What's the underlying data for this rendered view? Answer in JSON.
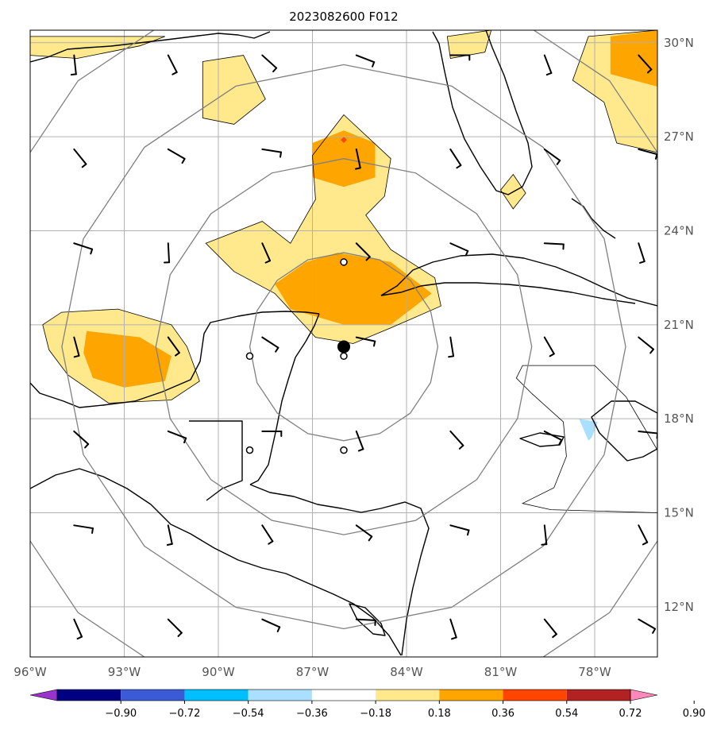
{
  "title": "2023082600 F012",
  "axes": {
    "lon_labels": [
      "96°W",
      "93°W",
      "90°W",
      "87°W",
      "84°W",
      "81°W",
      "78°W"
    ],
    "lat_labels": [
      "30°N",
      "27°N",
      "24°N",
      "21°N",
      "18°N",
      "15°N",
      "12°N"
    ],
    "lon_range": [
      -96,
      -76
    ],
    "lat_range": [
      10.4,
      30.4
    ],
    "grid": true
  },
  "colorbar": {
    "levels": [
      "−0.90",
      "−0.72",
      "−0.54",
      "−0.36",
      "−0.18",
      "0.18",
      "0.36",
      "0.54",
      "0.72",
      "0.90"
    ],
    "colors": [
      "#9933cc",
      "#000080",
      "#3b5bd6",
      "#00bfff",
      "#aadfff",
      "#ffffff",
      "#ffe98c",
      "#ffa500",
      "#ff4500",
      "#b22222",
      "#ff88bb"
    ],
    "extend": "both"
  },
  "colors": {
    "coast": "#000000",
    "grid": "#b0b0b0",
    "range_rings": "#808080",
    "contour_line": "#000000"
  },
  "storm_center": {
    "lon": -86.0,
    "lat": 20.3
  },
  "range_ring_radii_deg": [
    3,
    6,
    9,
    12
  ],
  "chart_data": {
    "type": "heatmap",
    "field_levels": [
      -0.9,
      -0.72,
      -0.54,
      -0.36,
      -0.18,
      0.18,
      0.36,
      0.54,
      0.72,
      0.9
    ],
    "positive_regions": [
      {
        "level": 0.18,
        "coords": [
          [
            -96,
            29.6
          ],
          [
            -94.5,
            29.5
          ],
          [
            -92.5,
            29.9
          ],
          [
            -91.7,
            30.2
          ],
          [
            -96,
            30.2
          ]
        ]
      },
      {
        "level": 0.18,
        "coords": [
          [
            -90.5,
            29.4
          ],
          [
            -89.2,
            29.6
          ],
          [
            -88.5,
            28.2
          ],
          [
            -89.5,
            27.4
          ],
          [
            -90.5,
            27.6
          ]
        ]
      },
      {
        "level": 0.18,
        "coords": [
          [
            -86.0,
            27.7
          ],
          [
            -84.5,
            26.3
          ],
          [
            -84.7,
            25.1
          ],
          [
            -85.3,
            24.5
          ],
          [
            -84.5,
            23.4
          ],
          [
            -83.1,
            22.5
          ],
          [
            -82.9,
            21.6
          ],
          [
            -84.5,
            20.9
          ],
          [
            -85.7,
            20.4
          ],
          [
            -86.9,
            20.6
          ],
          [
            -88.2,
            22.0
          ],
          [
            -89.5,
            22.7
          ],
          [
            -90.4,
            23.6
          ],
          [
            -88.6,
            24.3
          ],
          [
            -87.7,
            23.6
          ],
          [
            -86.9,
            25.0
          ],
          [
            -87.0,
            26.4
          ]
        ]
      },
      {
        "level": 0.18,
        "coords": [
          [
            -95.6,
            21.0
          ],
          [
            -95.0,
            21.4
          ],
          [
            -93.2,
            21.5
          ],
          [
            -91.5,
            21.0
          ],
          [
            -91.0,
            20.3
          ],
          [
            -90.6,
            19.2
          ],
          [
            -91.5,
            18.6
          ],
          [
            -93.5,
            18.5
          ],
          [
            -94.8,
            19.4
          ],
          [
            -95.4,
            20.2
          ]
        ]
      },
      {
        "level": 0.18,
        "coords": [
          [
            -82.7,
            30.2
          ],
          [
            -81.3,
            30.4
          ],
          [
            -81.5,
            29.7
          ],
          [
            -82.6,
            29.5
          ]
        ]
      },
      {
        "level": 0.18,
        "coords": [
          [
            -78.2,
            30.2
          ],
          [
            -76,
            30.4
          ],
          [
            -76,
            26.5
          ],
          [
            -77.3,
            26.8
          ],
          [
            -77.7,
            28.1
          ],
          [
            -78.7,
            28.8
          ]
        ]
      },
      {
        "level": 0.18,
        "coords": [
          [
            -80.6,
            25.8
          ],
          [
            -80.2,
            25.2
          ],
          [
            -80.6,
            24.7
          ],
          [
            -81.0,
            25.3
          ]
        ]
      },
      {
        "level": 0.36,
        "coords": [
          [
            -86.0,
            27.2
          ],
          [
            -85.0,
            26.8
          ],
          [
            -85.0,
            25.7
          ],
          [
            -86.0,
            25.4
          ],
          [
            -87.0,
            25.7
          ],
          [
            -87.0,
            26.8
          ]
        ]
      },
      {
        "level": 0.36,
        "coords": [
          [
            -86.2,
            23.3
          ],
          [
            -84.5,
            23.0
          ],
          [
            -83.2,
            22.0
          ],
          [
            -84.5,
            21.0
          ],
          [
            -86.0,
            21.0
          ],
          [
            -87.7,
            21.5
          ],
          [
            -88.2,
            22.3
          ],
          [
            -87.2,
            23.0
          ]
        ]
      },
      {
        "level": 0.36,
        "coords": [
          [
            -94.2,
            20.8
          ],
          [
            -92.5,
            20.6
          ],
          [
            -91.5,
            20.0
          ],
          [
            -91.7,
            19.2
          ],
          [
            -93.0,
            19.0
          ],
          [
            -94.0,
            19.3
          ],
          [
            -94.3,
            20.1
          ]
        ]
      },
      {
        "level": 0.36,
        "coords": [
          [
            -77.5,
            30.2
          ],
          [
            -76,
            30.4
          ],
          [
            -76,
            28.6
          ],
          [
            -77.5,
            29.0
          ]
        ]
      },
      {
        "level": 0.54,
        "coords": [
          [
            -86.0,
            27.0
          ],
          [
            -85.9,
            26.9
          ],
          [
            -86.0,
            26.8
          ],
          [
            -86.1,
            26.9
          ]
        ]
      }
    ],
    "negative_regions": [
      {
        "level": -0.18,
        "coords": [
          [
            -80.3,
            19.7
          ],
          [
            -78.0,
            19.7
          ],
          [
            -77.0,
            18.7
          ],
          [
            -76.0,
            17.0
          ],
          [
            -76,
            15.0
          ],
          [
            -79.4,
            15.1
          ],
          [
            -80.3,
            15.3
          ],
          [
            -79.3,
            15.8
          ],
          [
            -78.9,
            16.8
          ],
          [
            -79.0,
            17.9
          ],
          [
            -80.0,
            18.8
          ],
          [
            -80.5,
            19.3
          ]
        ]
      },
      {
        "level": -0.36,
        "coords": [
          [
            -78.5,
            18.0
          ],
          [
            -77.9,
            17.9
          ],
          [
            -78.1,
            17.4
          ],
          [
            -78.2,
            17.3
          ]
        ]
      }
    ],
    "center": {
      "lon": -86.0,
      "lat": 20.3
    }
  }
}
